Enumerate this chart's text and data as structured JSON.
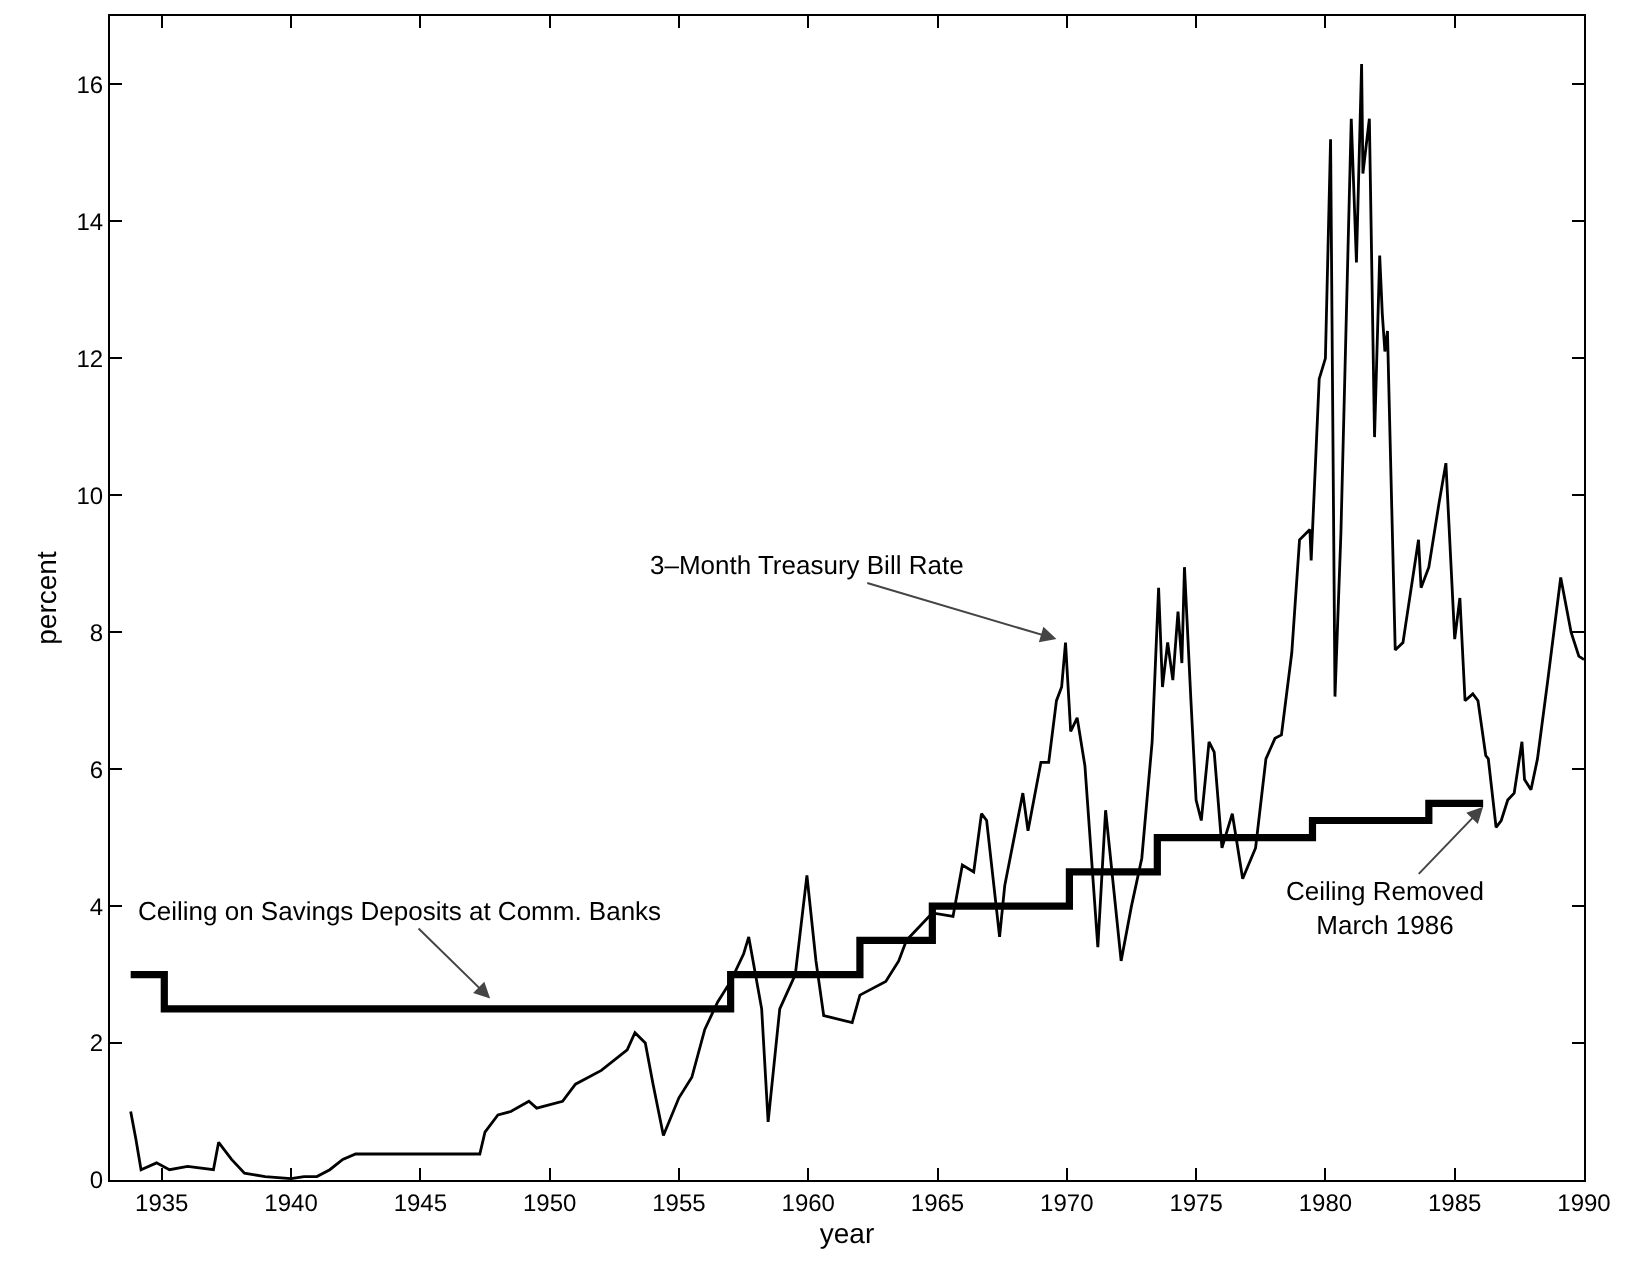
{
  "chart_data": {
    "type": "line",
    "xlabel": "year",
    "ylabel": "percent",
    "xlim": [
      1933,
      1990
    ],
    "xticks": [
      1935,
      1940,
      1945,
      1950,
      1955,
      1960,
      1965,
      1970,
      1975,
      1980,
      1985,
      1990
    ],
    "ylim": [
      0,
      17
    ],
    "yticks": [
      0,
      2,
      4,
      6,
      8,
      10,
      12,
      14,
      16
    ],
    "grid": false,
    "series": [
      {
        "type": "line",
        "color": "#000000",
        "x": [
          1933.8,
          1934.0,
          1934.2,
          1934.8,
          1935.3,
          1936,
          1937,
          1937.2,
          1937.7,
          1938.2,
          1939,
          1940,
          1940.5,
          1941,
          1941.5,
          1942,
          1942.5,
          1947.3,
          1947.5,
          1948,
          1948.5,
          1949.2,
          1949.5,
          1950.5,
          1951,
          1952,
          1953,
          1953.3,
          1953.7,
          1954,
          1954.4,
          1955,
          1955.5,
          1956,
          1956.5,
          1957,
          1957.5,
          1957.7,
          1958.2,
          1958.45,
          1958.9,
          1959.5,
          1959.95,
          1960.3,
          1960.6,
          1961.7,
          1962,
          1963,
          1963.5,
          1963.8,
          1964.8,
          1965.6,
          1965.96,
          1966.4,
          1966.7,
          1966.9,
          1967.4,
          1967.6,
          1968.3,
          1968.5,
          1969,
          1969.3,
          1969.6,
          1969.8,
          1969.95,
          1970.15,
          1970.4,
          1970.7,
          1971.2,
          1971.5,
          1972.1,
          1972.5,
          1972.9,
          1973.3,
          1973.55,
          1973.7,
          1973.9,
          1974.1,
          1974.3,
          1974.45,
          1974.55,
          1974.8,
          1975,
          1975.2,
          1975.5,
          1975.7,
          1976,
          1976.4,
          1976.8,
          1977.3,
          1977.7,
          1978.05,
          1978.3,
          1978.7,
          1979.0,
          1979.4,
          1979.45,
          1979.76,
          1980.0,
          1980.2,
          1980.37,
          1980.6,
          1981.0,
          1981.2,
          1981.4,
          1981.45,
          1981.7,
          1981.9,
          1982.1,
          1982.2,
          1982.3,
          1982.4,
          1982.7,
          1983.0,
          1983.1,
          1983.6,
          1983.7,
          1984,
          1984.4,
          1984.66,
          1985,
          1985.2,
          1985.4,
          1985.7,
          1985.9,
          1986.2,
          1986.3,
          1986.6,
          1986.8,
          1987.05,
          1987.3,
          1987.6,
          1987.7,
          1987.95,
          1988.2,
          1988.6,
          1989.1,
          1989.5,
          1989.8,
          1990
        ],
        "values": [
          1.0,
          0.6,
          0.15,
          0.25,
          0.15,
          0.2,
          0.15,
          0.55,
          0.3,
          0.1,
          0.05,
          0.02,
          0.05,
          0.05,
          0.15,
          0.3,
          0.38,
          0.38,
          0.7,
          0.95,
          1.0,
          1.15,
          1.05,
          1.15,
          1.4,
          1.6,
          1.9,
          2.15,
          2.0,
          1.4,
          0.65,
          1.2,
          1.5,
          2.2,
          2.6,
          2.9,
          3.3,
          3.55,
          2.5,
          0.85,
          2.5,
          3.0,
          4.45,
          3.2,
          2.4,
          2.3,
          2.7,
          2.9,
          3.2,
          3.5,
          3.9,
          3.85,
          4.6,
          4.5,
          5.35,
          5.25,
          3.55,
          4.3,
          5.65,
          5.1,
          6.1,
          6.1,
          7.0,
          7.2,
          7.85,
          6.55,
          6.75,
          6.05,
          3.4,
          5.4,
          3.2,
          4.0,
          4.7,
          6.4,
          8.65,
          7.2,
          7.85,
          7.3,
          8.3,
          7.55,
          8.95,
          7.0,
          5.55,
          5.25,
          6.4,
          6.25,
          4.85,
          5.35,
          4.4,
          4.85,
          6.15,
          6.45,
          6.5,
          7.7,
          9.35,
          9.5,
          9.05,
          11.7,
          12.0,
          15.2,
          7.06,
          9.45,
          15.5,
          13.4,
          16.3,
          14.7,
          15.5,
          10.85,
          13.5,
          12.65,
          12.1,
          12.4,
          7.74,
          7.85,
          8.1,
          9.35,
          8.65,
          8.95,
          9.9,
          10.47,
          7.9,
          8.5,
          7.0,
          7.1,
          7.0,
          6.2,
          6.15,
          5.15,
          5.25,
          5.55,
          5.65,
          6.4,
          5.85,
          5.7,
          6.15,
          7.3,
          8.8,
          8.0,
          7.65,
          7.6
        ]
      },
      {
        "type": "step",
        "color": "#000000",
        "x": [
          1933.8,
          1935.1,
          1957,
          1962,
          1964.8,
          1970.1,
          1973.5,
          1979.5,
          1984,
          1986.1
        ],
        "values": [
          3,
          2.5,
          3,
          3.5,
          4,
          4.5,
          5,
          5.25,
          5.5,
          5.5
        ]
      }
    ],
    "annotations": [
      {
        "text": "3–Month Treasury Bill Rate",
        "x": 1969.6,
        "y": 7.9
      },
      {
        "text": "Ceiling on Savings Deposits at Comm. Banks",
        "x": 1947.7,
        "y": 2.65
      },
      {
        "text": "Ceiling Removed\nMarch 1986",
        "x": 1986.1,
        "y": 5.45
      }
    ]
  }
}
